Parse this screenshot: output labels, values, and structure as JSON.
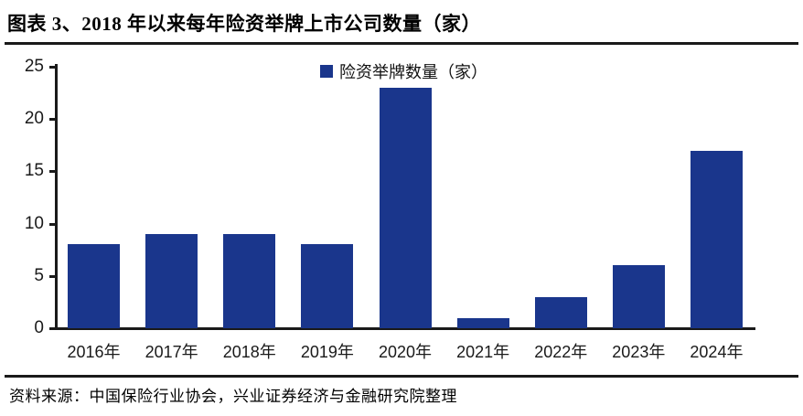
{
  "title": "图表 3、2018 年以来每年险资举牌上市公司数量（家）",
  "source": {
    "text": "资料来源：中国保险行业协会，兴业证券经济与金融研究院整理"
  },
  "chart_data": {
    "type": "bar",
    "title": "图表 3、2018 年以来每年险资举牌上市公司数量（家）",
    "legend": "险资举牌数量（家）",
    "legend_position": "top-center",
    "categories": [
      "2016年",
      "2017年",
      "2018年",
      "2019年",
      "2020年",
      "2021年",
      "2022年",
      "2023年",
      "2024年"
    ],
    "values": [
      8,
      9,
      9,
      8,
      23,
      1,
      3,
      6,
      17
    ],
    "xlabel": "",
    "ylabel": "",
    "ylim": [
      0,
      25
    ],
    "yticks": [
      0,
      5,
      10,
      15,
      20,
      25
    ],
    "grid": false,
    "bar_color": "#1A368C",
    "axis_color": "#1a1a1a"
  }
}
